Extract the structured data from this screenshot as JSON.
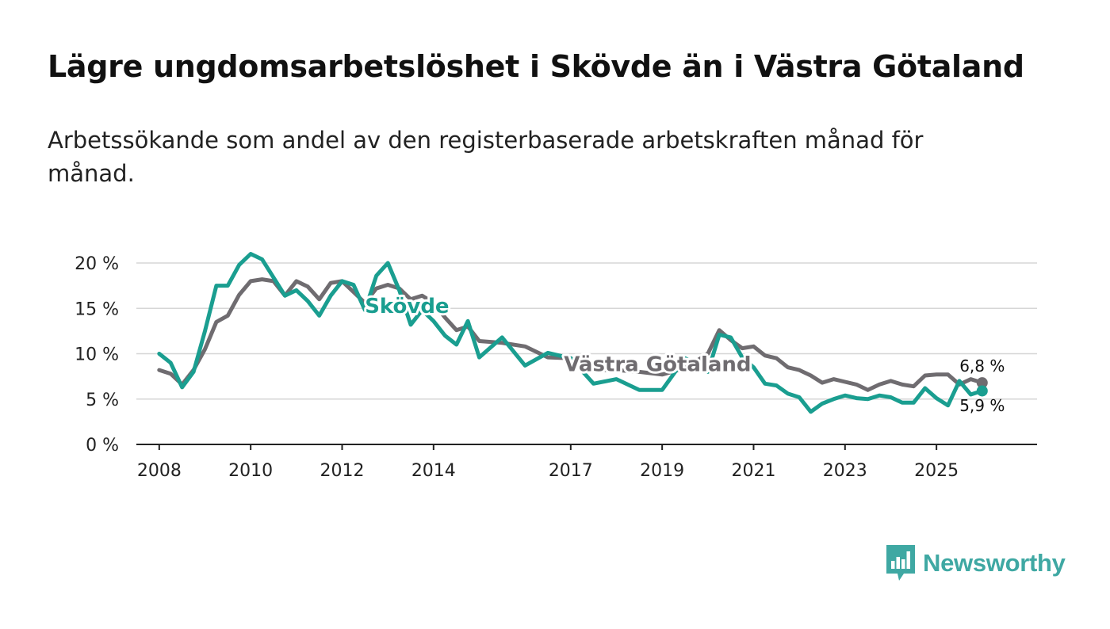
{
  "title": "Lägre ungdomsarbetslöshet i Skövde än i Västra Götaland",
  "subtitle": "Arbetssökande som andel av den registerbaserade arbetskraften månad för månad.",
  "brand": {
    "name": "Newsworthy",
    "color": "#3fa8a3"
  },
  "chart_data": {
    "type": "line",
    "title": "Lägre ungdomsarbetslöshet i Skövde än i Västra Götaland",
    "xlabel": "",
    "ylabel": "",
    "xlim": [
      2007.5,
      2027.2
    ],
    "ylim": [
      0,
      21
    ],
    "y_ticks": [
      0,
      5,
      10,
      15,
      20
    ],
    "y_tick_labels": [
      "0 %",
      "5 %",
      "10 %",
      "15 %",
      "20 %"
    ],
    "x_ticks": [
      2008,
      2010,
      2012,
      2014,
      2017,
      2019,
      2021,
      2023,
      2025
    ],
    "x_tick_labels": [
      "2008",
      "2010",
      "2012",
      "2014",
      "2017",
      "2019",
      "2021",
      "2023",
      "2025"
    ],
    "grid": true,
    "series": [
      {
        "name": "Västra Götaland",
        "color": "#6f6c70",
        "label": "Västra Götaland",
        "label_at": [
          2018.9,
          8.1
        ],
        "end_label": "6,8 %",
        "end_value": 6.8,
        "x": [
          2008.0,
          2008.25,
          2008.5,
          2008.75,
          2009.0,
          2009.25,
          2009.5,
          2009.75,
          2010.0,
          2010.25,
          2010.5,
          2010.75,
          2011.0,
          2011.25,
          2011.5,
          2011.75,
          2012.0,
          2012.25,
          2012.5,
          2012.75,
          2013.0,
          2013.25,
          2013.5,
          2013.75,
          2014.0,
          2014.25,
          2014.5,
          2014.75,
          2015.0,
          2015.5,
          2016.0,
          2016.5,
          2017.0,
          2017.5,
          2018.0,
          2018.5,
          2019.0,
          2019.5,
          2020.0,
          2020.25,
          2020.5,
          2020.75,
          2021.0,
          2021.25,
          2021.5,
          2021.75,
          2022.0,
          2022.25,
          2022.5,
          2022.75,
          2023.0,
          2023.25,
          2023.5,
          2023.75,
          2024.0,
          2024.25,
          2024.5,
          2024.75,
          2025.0,
          2025.25,
          2025.5,
          2025.75,
          2026.0
        ],
        "y": [
          8.2,
          7.8,
          6.6,
          8.2,
          10.5,
          13.5,
          14.2,
          16.5,
          18.0,
          18.2,
          18.0,
          16.4,
          18.0,
          17.4,
          16.0,
          17.8,
          18.0,
          16.8,
          15.6,
          17.2,
          17.6,
          17.2,
          16.0,
          16.4,
          15.6,
          14.0,
          12.6,
          13.0,
          11.4,
          11.2,
          10.8,
          9.6,
          9.5,
          8.2,
          8.2,
          8.0,
          7.7,
          8.4,
          10.0,
          12.6,
          11.5,
          10.6,
          10.8,
          9.8,
          9.5,
          8.5,
          8.2,
          7.6,
          6.8,
          7.2,
          6.9,
          6.6,
          6.0,
          6.6,
          7.0,
          6.6,
          6.4,
          7.6,
          7.7,
          7.7,
          6.6,
          7.2,
          6.8
        ]
      },
      {
        "name": "Skövde",
        "color": "#1a9e90",
        "label": "Skövde",
        "label_at": [
          2013.42,
          14.5
        ],
        "end_label": "5,9 %",
        "end_value": 5.9,
        "x": [
          2008.0,
          2008.25,
          2008.5,
          2008.75,
          2009.0,
          2009.25,
          2009.5,
          2009.75,
          2010.0,
          2010.25,
          2010.5,
          2010.75,
          2011.0,
          2011.25,
          2011.5,
          2011.75,
          2012.0,
          2012.25,
          2012.5,
          2012.75,
          2013.0,
          2013.25,
          2013.5,
          2013.75,
          2014.0,
          2014.25,
          2014.5,
          2014.75,
          2015.0,
          2015.5,
          2016.0,
          2016.5,
          2017.0,
          2017.5,
          2018.0,
          2018.5,
          2019.0,
          2019.5,
          2020.0,
          2020.25,
          2020.5,
          2020.75,
          2021.0,
          2021.25,
          2021.5,
          2021.75,
          2022.0,
          2022.25,
          2022.5,
          2022.75,
          2023.0,
          2023.25,
          2023.5,
          2023.75,
          2024.0,
          2024.25,
          2024.5,
          2024.75,
          2025.0,
          2025.25,
          2025.5,
          2025.75,
          2026.0
        ],
        "y": [
          10.0,
          9.0,
          6.3,
          8.0,
          12.5,
          17.5,
          17.5,
          19.8,
          21.0,
          20.4,
          18.4,
          16.4,
          17.0,
          15.8,
          14.2,
          16.4,
          18.0,
          17.6,
          14.8,
          18.6,
          20.0,
          17.0,
          13.2,
          14.8,
          13.6,
          12.0,
          11.0,
          13.6,
          9.6,
          11.8,
          8.7,
          10.1,
          9.5,
          6.7,
          7.2,
          6.0,
          6.0,
          9.5,
          8.0,
          12.1,
          11.8,
          9.6,
          8.5,
          6.7,
          6.5,
          5.6,
          5.2,
          3.6,
          4.5,
          5.0,
          5.4,
          5.1,
          5.0,
          5.4,
          5.2,
          4.6,
          4.6,
          6.2,
          5.1,
          4.3,
          7.0,
          5.5,
          5.9
        ]
      }
    ]
  }
}
